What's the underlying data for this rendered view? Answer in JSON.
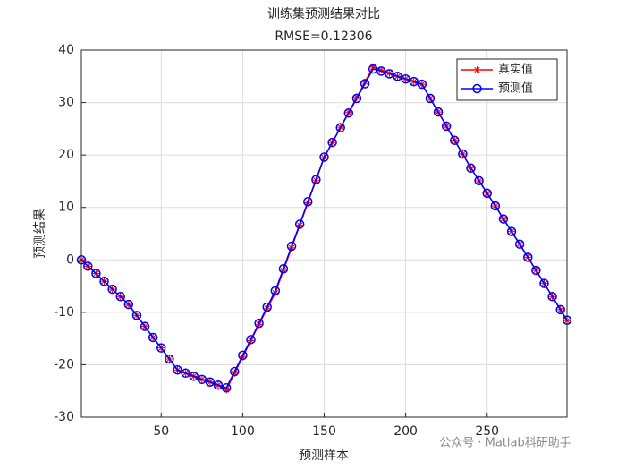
{
  "chart_data": {
    "type": "line",
    "title": "训练集预测结果对比",
    "subtitle": "RMSE=0.12306",
    "x_label": "预测样本",
    "y_label": "预测结果",
    "watermark": "公众号 · Matlab科研助手",
    "x": [
      1,
      5,
      10,
      15,
      20,
      25,
      30,
      35,
      40,
      45,
      50,
      55,
      60,
      65,
      70,
      75,
      80,
      85,
      90,
      95,
      100,
      105,
      110,
      115,
      120,
      125,
      130,
      135,
      140,
      145,
      150,
      155,
      160,
      165,
      170,
      175,
      180,
      185,
      190,
      195,
      200,
      205,
      210,
      215,
      220,
      225,
      230,
      235,
      240,
      245,
      250,
      255,
      260,
      265,
      270,
      275,
      280,
      285,
      290,
      295,
      299
    ],
    "series": [
      {
        "name": "真实值",
        "color": "#ff0000",
        "marker": "star",
        "values": [
          0,
          -1.2,
          -2.6,
          -4.1,
          -5.6,
          -7.0,
          -8.5,
          -10.6,
          -12.7,
          -14.8,
          -16.8,
          -18.9,
          -21,
          -21.6,
          -22.2,
          -22.8,
          -23.3,
          -23.9,
          -24.8,
          -21.6,
          -18.5,
          -15.4,
          -12.3,
          -9.3,
          -6.3,
          -2.0,
          2.3,
          6.6,
          10.9,
          15.2,
          19.5,
          22.4,
          25.3,
          28.1,
          31.0,
          33.9,
          36.8,
          36.2,
          35.6,
          35.0,
          34.5,
          34.0,
          33.5,
          30.8,
          28.2,
          25.5,
          22.8,
          20.2,
          17.5,
          15.1,
          12.7,
          10.3,
          7.8,
          5.4,
          3,
          0.5,
          -2,
          -4.5,
          -7,
          -9.5,
          -11.6
        ]
      },
      {
        "name": "预测值",
        "color": "#0000ff",
        "marker": "circle",
        "values": [
          0,
          -1.2,
          -2.6,
          -4.1,
          -5.6,
          -7.0,
          -8.5,
          -10.6,
          -12.7,
          -14.8,
          -16.8,
          -18.9,
          -21,
          -21.6,
          -22.2,
          -22.8,
          -23.3,
          -23.9,
          -24.4,
          -21.3,
          -18.2,
          -15.2,
          -12.1,
          -9.0,
          -5.9,
          -1.7,
          2.6,
          6.8,
          11.1,
          15.3,
          19.6,
          22.4,
          25.2,
          28.0,
          30.8,
          33.6,
          36.4,
          36.0,
          35.5,
          35.0,
          34.5,
          34.0,
          33.5,
          30.8,
          28.2,
          25.5,
          22.8,
          20.2,
          17.5,
          15.1,
          12.7,
          10.3,
          7.8,
          5.4,
          3,
          0.5,
          -2,
          -4.5,
          -7,
          -9.5,
          -11.5
        ]
      }
    ],
    "xlim": [
      1,
      299
    ],
    "ylim": [
      -30,
      40
    ],
    "xticks": [
      50,
      100,
      150,
      200,
      250
    ],
    "yticks": [
      -30,
      -20,
      -10,
      0,
      10,
      20,
      30,
      40
    ],
    "grid": true,
    "legend": "upper right"
  }
}
